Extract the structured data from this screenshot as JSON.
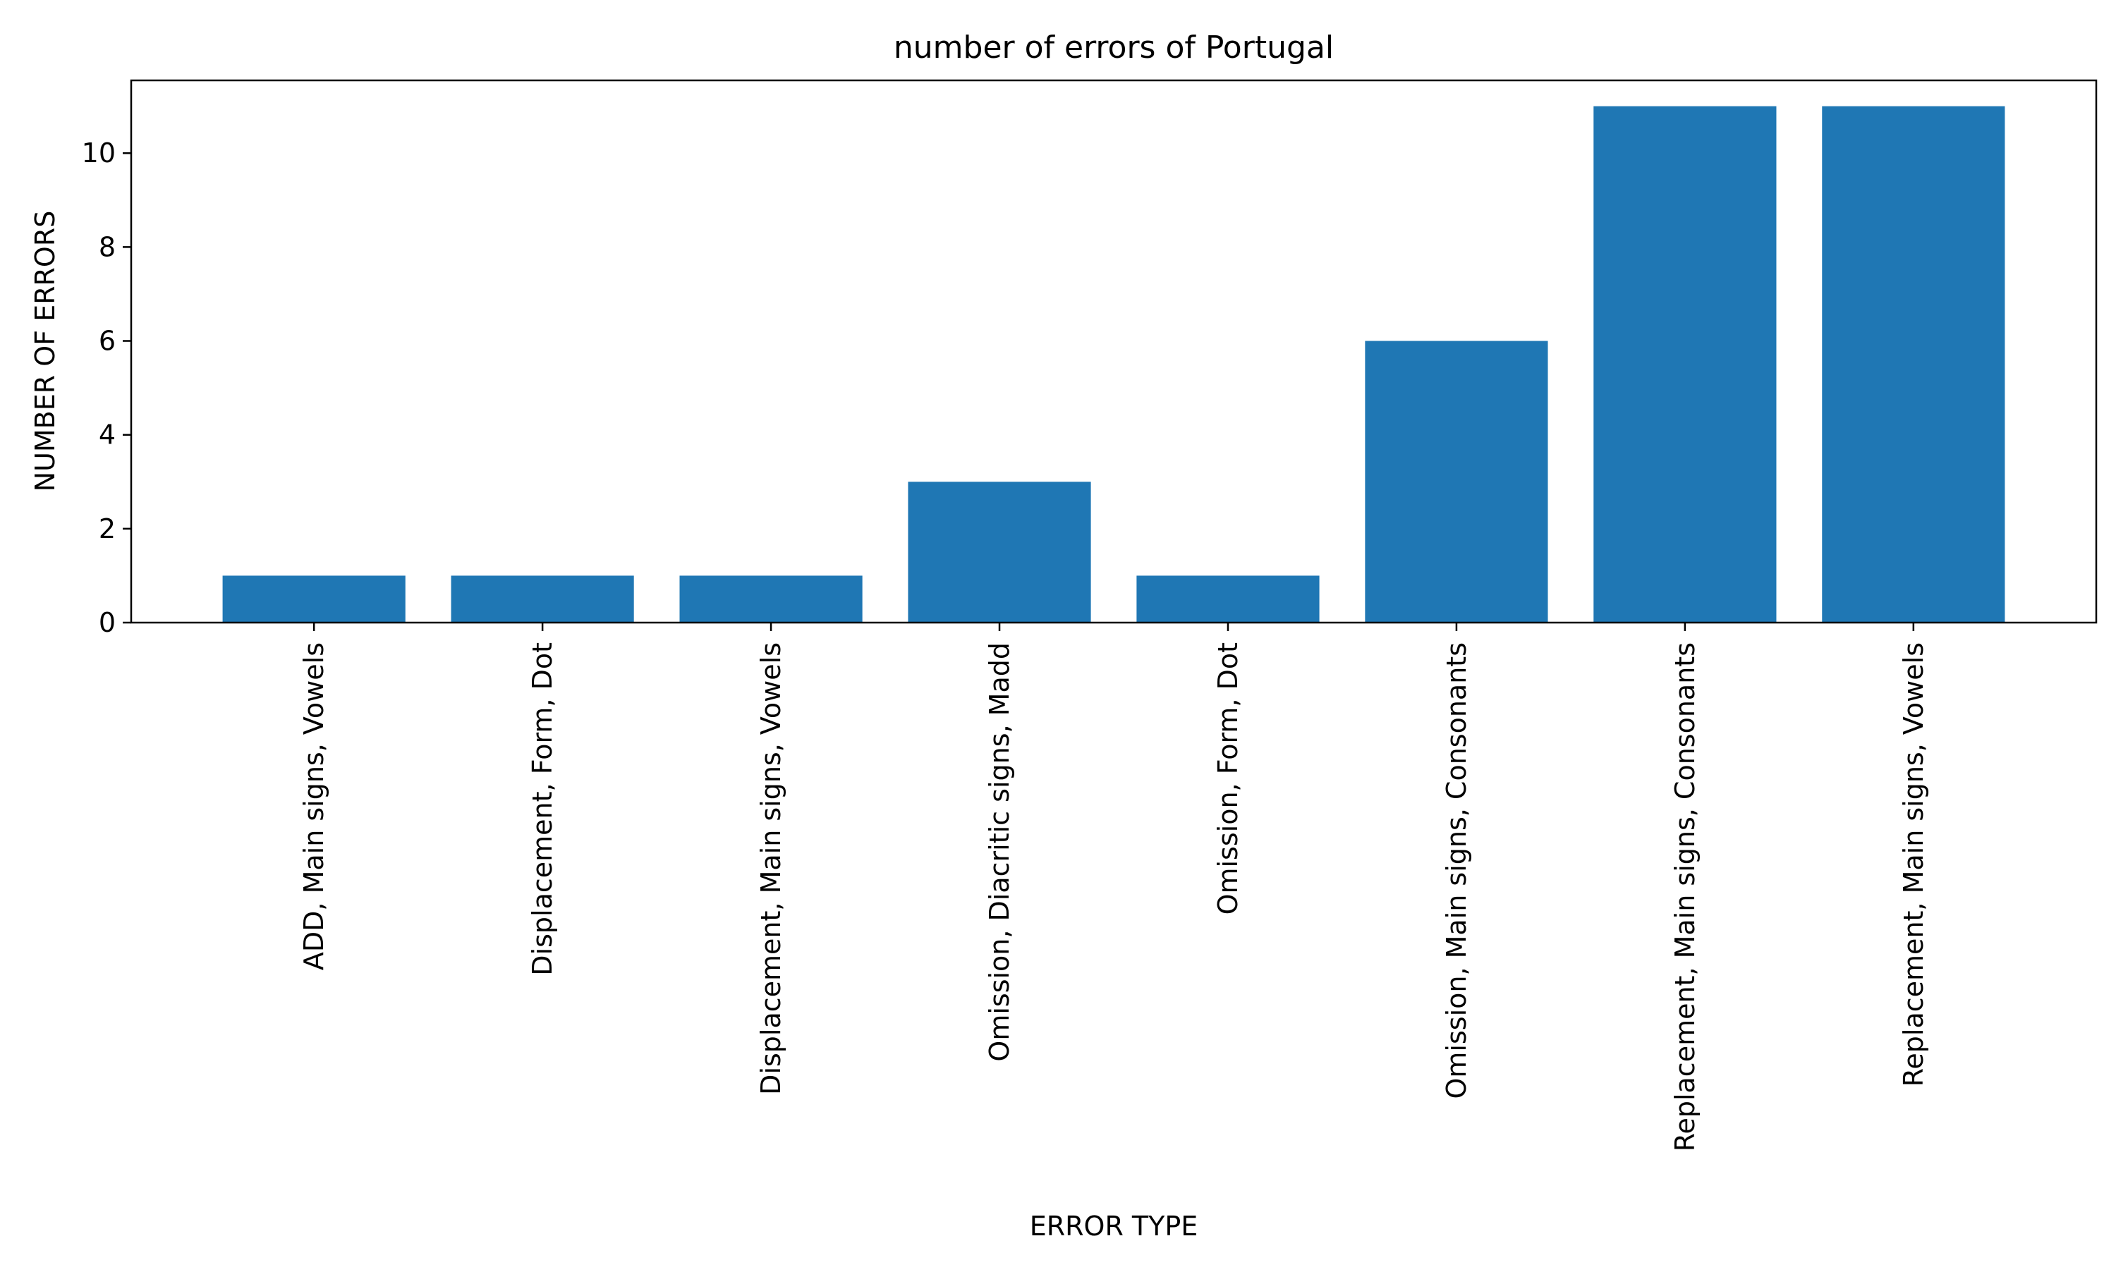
{
  "chart_data": {
    "type": "bar",
    "title": "number of errors of Portugal",
    "xlabel": "ERROR TYPE",
    "ylabel": "NUMBER OF ERRORS",
    "categories": [
      "ADD, Main signs, Vowels",
      "Displacement, Form, Dot",
      "Displacement, Main signs, Vowels",
      "Omission, Diacritic signs, Madd",
      "Omission, Form, Dot",
      "Omission, Main signs, Consonants",
      "Replacement, Main signs, Consonants",
      "Replacement, Main signs, Vowels"
    ],
    "values": [
      1,
      1,
      1,
      3,
      1,
      6,
      11,
      11
    ],
    "ylim": [
      0,
      11.55
    ],
    "yticks": [
      0,
      2,
      4,
      6,
      8,
      10
    ],
    "grid": false,
    "legend": "none",
    "colors": {
      "bar": "#1f77b4",
      "axis": "#000000",
      "background": "#ffffff"
    }
  }
}
